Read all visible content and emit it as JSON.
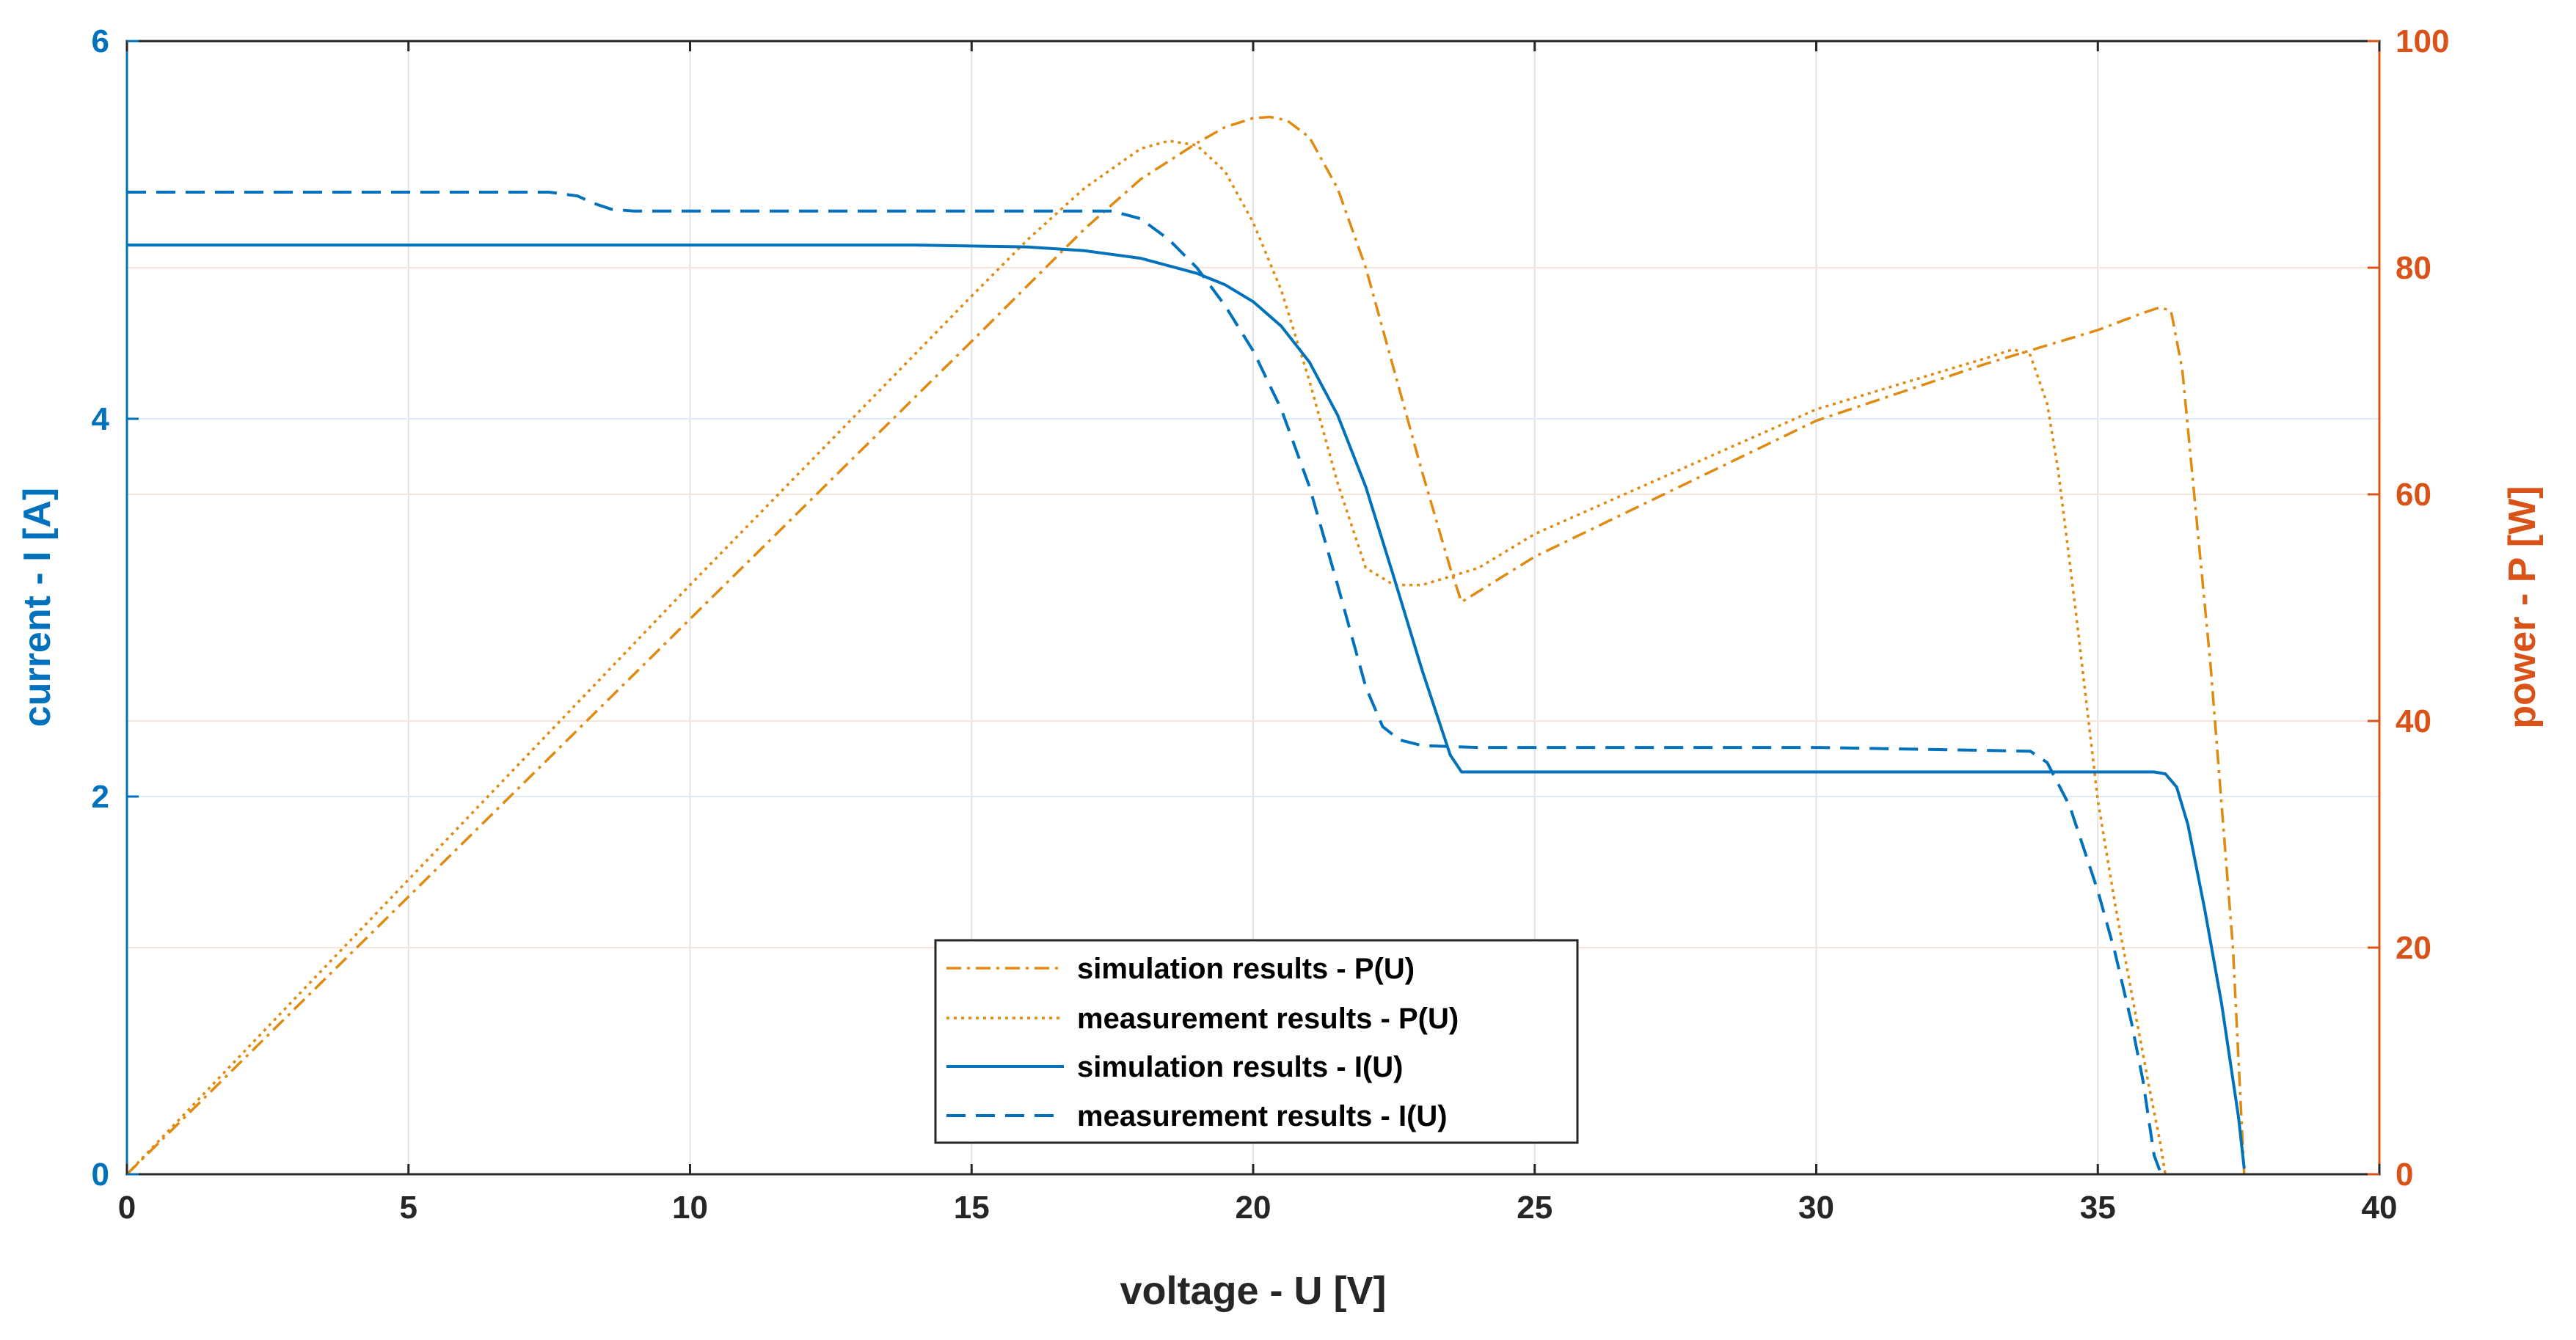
{
  "chart_data": {
    "type": "line",
    "title": "",
    "xlabel": "voltage - U [V]",
    "ylabel_left": "current - I [A]",
    "ylabel_right": "power - P [W]",
    "xlim": [
      0,
      40
    ],
    "ylim_left": [
      0,
      6
    ],
    "ylim_right": [
      0,
      100
    ],
    "xticks": [
      "0",
      "5",
      "10",
      "15",
      "20",
      "25",
      "30",
      "35",
      "40"
    ],
    "yticks_left": [
      "0",
      "2",
      "4",
      "6"
    ],
    "yticks_right": [
      "0",
      "20",
      "40",
      "60",
      "80",
      "100"
    ],
    "grid": true,
    "legend_position": "bottom-center",
    "colors": {
      "current": "#0072BD",
      "power": "#D95319",
      "power_line": "#E08A10",
      "axis": "#262626"
    },
    "series": [
      {
        "name": "simulation results - P(U)",
        "axis": "right",
        "style": "dash-dot",
        "x": [
          0,
          5,
          10,
          15,
          17,
          18,
          19,
          19.5,
          20,
          20.3,
          20.6,
          21,
          21.5,
          22,
          22.5,
          23,
          23.5,
          23.7,
          25,
          30,
          33,
          35,
          35.8,
          36.1,
          36.3,
          36.5,
          37,
          37.4,
          37.6
        ],
        "values": [
          0,
          24.5,
          49,
          73.5,
          83.4,
          87.8,
          91,
          92.4,
          93.2,
          93.3,
          93,
          91.5,
          87,
          80,
          71,
          62,
          53.5,
          50.5,
          54.5,
          66.5,
          71.5,
          74.5,
          76,
          76.5,
          76.2,
          71,
          45,
          20,
          0
        ]
      },
      {
        "name": "measurement results - P(U)",
        "axis": "right",
        "style": "dotted",
        "x": [
          0,
          5,
          10,
          15,
          16,
          17,
          18,
          18.5,
          19,
          19.5,
          20,
          20.5,
          21,
          21.5,
          22,
          22.5,
          23,
          24,
          25,
          30,
          33,
          33.5,
          33.8,
          34.1,
          34.3,
          34.6,
          35,
          35.3,
          35.6,
          35.9,
          36.1,
          36.2
        ],
        "values": [
          0,
          26,
          52,
          77.5,
          82.5,
          87,
          90.5,
          91.2,
          90.8,
          88.5,
          84,
          78,
          70,
          61,
          53.5,
          52,
          52,
          53.5,
          56.5,
          67.5,
          72,
          72.8,
          72.3,
          68,
          62,
          50,
          33,
          24,
          16,
          8,
          3,
          0
        ]
      },
      {
        "name": "simulation results - I(U)",
        "axis": "left",
        "style": "solid",
        "x": [
          0,
          14,
          16,
          17,
          18,
          19,
          19.5,
          20,
          20.5,
          21,
          21.5,
          22,
          22.5,
          23,
          23.5,
          23.7,
          30,
          35,
          36,
          36.2,
          36.4,
          36.6,
          36.9,
          37.2,
          37.5,
          37.6
        ],
        "values": [
          4.92,
          4.92,
          4.91,
          4.89,
          4.85,
          4.77,
          4.71,
          4.62,
          4.49,
          4.3,
          4.02,
          3.64,
          3.16,
          2.67,
          2.22,
          2.13,
          2.13,
          2.13,
          2.13,
          2.12,
          2.05,
          1.85,
          1.4,
          0.9,
          0.3,
          0.03
        ]
      },
      {
        "name": "measurement results - I(U)",
        "axis": "left",
        "style": "dashed",
        "x": [
          0,
          7,
          7.5,
          8,
          8.3,
          8.6,
          9,
          10,
          17.5,
          18,
          18.5,
          19,
          19.5,
          20,
          20.5,
          21,
          21.5,
          22,
          22.3,
          22.6,
          23,
          24,
          30,
          33.8,
          34.1,
          34.5,
          35,
          35.3,
          35.6,
          35.8,
          36,
          36.1
        ],
        "values": [
          5.2,
          5.2,
          5.2,
          5.18,
          5.14,
          5.11,
          5.1,
          5.1,
          5.1,
          5.06,
          4.95,
          4.8,
          4.6,
          4.36,
          4.05,
          3.64,
          3.12,
          2.58,
          2.37,
          2.3,
          2.27,
          2.26,
          2.26,
          2.24,
          2.18,
          1.95,
          1.5,
          1.18,
          0.8,
          0.5,
          0.1,
          0.02
        ]
      }
    ]
  }
}
